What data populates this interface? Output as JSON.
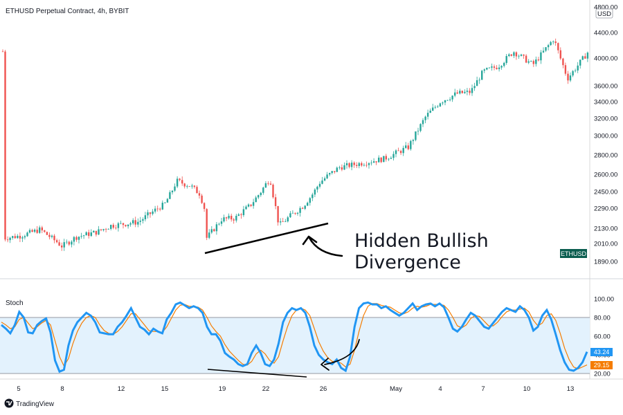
{
  "header": {
    "title": "ETHUSD Perpetual Contract, 4h, BYBIT",
    "currency_button": "USD",
    "symbol_tag": "ETHUSD"
  },
  "colors": {
    "up": "#26a69a",
    "down": "#ef5350",
    "stoch_k": "#2196f3",
    "stoch_d": "#f57c00",
    "stoch_band_fill": "#e3f2fd",
    "symbol_tag": "#0b5d4f"
  },
  "annotation": {
    "line1": "Hidden Bullish",
    "line2": "Divergence"
  },
  "branding": {
    "logo_text": "TradingView"
  },
  "chart_data": [
    {
      "type": "candlestick",
      "title": "ETHUSD Perpetual Contract, 4h, BYBIT",
      "price_ticks": [
        1890,
        2010,
        2130,
        2290,
        2450,
        2600,
        2800,
        3000,
        3200,
        3400,
        3600,
        4000,
        4400,
        4800
      ],
      "price_tick_labels": [
        "1890.00",
        "2010.00",
        "2130.00",
        "2290.00",
        "2450.00",
        "2600.00",
        "2800.00",
        "3000.00",
        "3200.00",
        "3400.00",
        "3600.00",
        "4000.00",
        "4400.00",
        "4800.00"
      ],
      "scale": "log",
      "x_tick_labels": [
        "5",
        "8",
        "12",
        "15",
        "19",
        "22",
        "26",
        "May",
        "4",
        "7",
        "10",
        "13"
      ],
      "close_path": [
        [
          "5",
          2050
        ],
        [
          "6",
          2070
        ],
        [
          "7",
          2120
        ],
        [
          "8",
          1990
        ],
        [
          "9",
          2060
        ],
        [
          "10",
          2100
        ],
        [
          "11",
          2150
        ],
        [
          "12",
          2160
        ],
        [
          "13",
          2180
        ],
        [
          "14",
          2330
        ],
        [
          "15",
          2540
        ],
        [
          "16",
          2500
        ],
        [
          "17",
          2430
        ],
        [
          "17.6",
          2300
        ],
        [
          "18",
          2050
        ],
        [
          "19",
          2200
        ],
        [
          "20",
          2210
        ],
        [
          "21",
          2320
        ],
        [
          "22",
          2570
        ],
        [
          "23",
          2150
        ],
        [
          "24",
          2220
        ],
        [
          "25",
          2310
        ],
        [
          "25.5",
          2410
        ],
        [
          "26",
          2530
        ],
        [
          "27",
          2670
        ],
        [
          "28",
          2710
        ],
        [
          "29",
          2760
        ],
        [
          "30",
          2880
        ],
        [
          "May",
          3220
        ],
        [
          "4",
          3400
        ],
        [
          "5",
          3500
        ],
        [
          "6",
          3520
        ],
        [
          "7",
          3800
        ],
        [
          "8",
          3880
        ],
        [
          "10",
          4100
        ],
        [
          "11",
          3900
        ],
        [
          "12",
          4300
        ],
        [
          "13",
          3700
        ],
        [
          "13.5",
          4100
        ]
      ],
      "annotation_trendline": {
        "from": [
          "18",
          1960
        ],
        "to": [
          "25.7",
          2170
        ]
      }
    },
    {
      "type": "line",
      "title": "Stoch",
      "ylim": [
        20,
        100
      ],
      "y_ticks": [
        20,
        40,
        60,
        80,
        100
      ],
      "y_tick_labels": [
        "20.00",
        "40.00",
        "60.00",
        "80.00",
        "100.00"
      ],
      "bands": [
        20,
        80
      ],
      "last_values": {
        "k": 43.24,
        "d": 29.15
      },
      "last_value_labels": {
        "k": "43.24",
        "d": "29.15"
      },
      "x_tick_labels": [
        "5",
        "8",
        "12",
        "15",
        "19",
        "22",
        "26",
        "May",
        "4",
        "7",
        "10",
        "13"
      ],
      "series": [
        {
          "key": "k",
          "values": [
            72,
            68,
            63,
            72,
            86,
            80,
            64,
            63,
            72,
            76,
            79,
            64,
            34,
            22,
            24,
            50,
            66,
            75,
            80,
            85,
            82,
            75,
            64,
            63,
            62,
            62,
            70,
            75,
            82,
            90,
            80,
            70,
            67,
            62,
            68,
            65,
            63,
            78,
            85,
            94,
            96,
            93,
            90,
            92,
            90,
            85,
            70,
            62,
            62,
            55,
            42,
            38,
            35,
            30,
            28,
            30,
            42,
            50,
            42,
            30,
            28,
            35,
            52,
            75,
            85,
            90,
            88,
            90,
            85,
            70,
            50,
            40,
            35,
            32,
            30,
            35,
            26,
            23,
            38,
            70,
            90,
            95,
            96,
            94,
            94,
            90,
            92,
            88,
            85,
            82,
            85,
            90,
            95,
            88,
            92,
            94,
            95,
            92,
            95,
            91,
            80,
            68,
            65,
            70,
            78,
            85,
            82,
            76,
            70,
            68,
            74,
            80,
            86,
            90,
            88,
            86,
            92,
            88,
            80,
            66,
            70,
            82,
            88,
            78,
            62,
            45,
            32,
            24,
            23,
            26,
            32,
            43.24
          ]
        },
        {
          "key": "d",
          "values": [
            75,
            72,
            68,
            70,
            78,
            80,
            74,
            68,
            70,
            74,
            77,
            72,
            55,
            38,
            28,
            36,
            52,
            65,
            74,
            80,
            82,
            80,
            72,
            66,
            63,
            62,
            65,
            70,
            77,
            84,
            84,
            78,
            72,
            66,
            65,
            65,
            64,
            70,
            79,
            88,
            93,
            94,
            92,
            92,
            91,
            88,
            80,
            71,
            65,
            60,
            51,
            44,
            39,
            34,
            30,
            29,
            33,
            41,
            45,
            41,
            34,
            31,
            38,
            55,
            70,
            82,
            88,
            90,
            88,
            82,
            68,
            54,
            44,
            37,
            33,
            33,
            31,
            27,
            30,
            45,
            65,
            82,
            92,
            95,
            95,
            93,
            92,
            91,
            88,
            85,
            84,
            86,
            90,
            92,
            91,
            92,
            94,
            94,
            94,
            93,
            88,
            80,
            71,
            69,
            72,
            79,
            82,
            81,
            76,
            71,
            71,
            75,
            81,
            86,
            88,
            88,
            89,
            90,
            86,
            77,
            71,
            74,
            82,
            84,
            77,
            63,
            47,
            35,
            27,
            25,
            27,
            29.15
          ]
        }
      ],
      "annotation_trendline": {
        "from": [
          "19",
          22
        ],
        "to": [
          "26",
          18
        ]
      }
    }
  ]
}
